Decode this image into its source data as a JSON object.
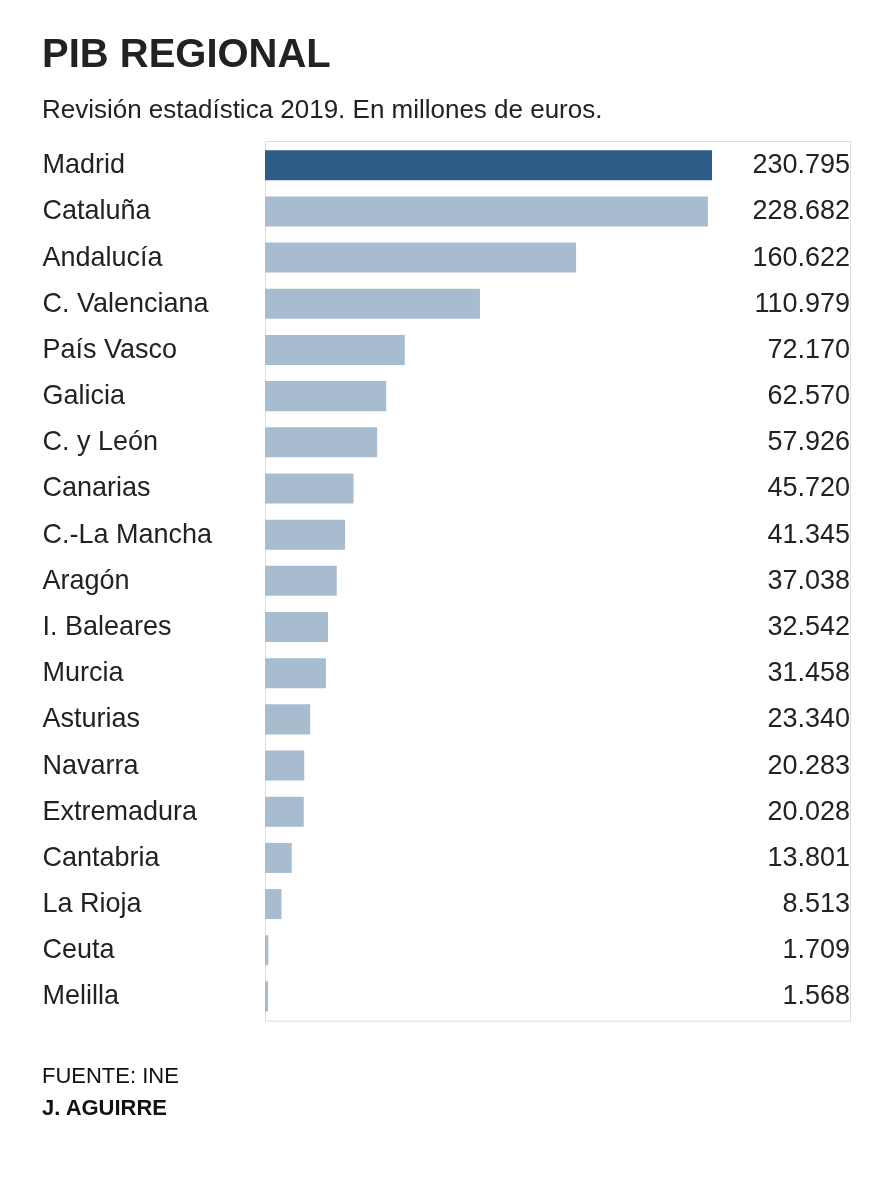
{
  "chart_data": {
    "type": "bar",
    "orientation": "horizontal",
    "title": "PIB REGIONAL",
    "subtitle": "Revisión estadística 2019. En millones de euros.",
    "categories": [
      "Madrid",
      "Cataluña",
      "Andalucía",
      "C. Valenciana",
      "País Vasco",
      "Galicia",
      "C. y León",
      "Canarias",
      "C.-La Mancha",
      "Aragón",
      "I. Baleares",
      "Murcia",
      "Asturias",
      "Navarra",
      "Extremadura",
      "Cantabria",
      "La Rioja",
      "Ceuta",
      "Melilla"
    ],
    "values": [
      230795,
      228682,
      160622,
      110979,
      72170,
      62570,
      57926,
      45720,
      41345,
      37038,
      32542,
      31458,
      23340,
      20283,
      20028,
      13801,
      8513,
      1709,
      1568
    ],
    "value_labels": [
      "230.795",
      "228.682",
      "160.622",
      "110.979",
      "72.170",
      "62.570",
      "57.926",
      "45.720",
      "41.345",
      "37.038",
      "32.542",
      "31.458",
      "23.340",
      "20.283",
      "20.028",
      "13.801",
      "8.513",
      "1.709",
      "1.568"
    ],
    "colors": [
      "#2d5d88",
      "#a8bccf",
      "#a8bccf",
      "#a8bccf",
      "#a8bccf",
      "#a8bccf",
      "#a8bccf",
      "#a8bccf",
      "#a8bccf",
      "#a8bccf",
      "#a8bccf",
      "#a8bccf",
      "#a8bccf",
      "#a8bccf",
      "#a8bccf",
      "#a8bccf",
      "#a8bccf",
      "#a8bccf",
      "#a8bccf"
    ],
    "annotations": [
      "FUENTE: INE",
      "J. AGUIRRE"
    ]
  }
}
